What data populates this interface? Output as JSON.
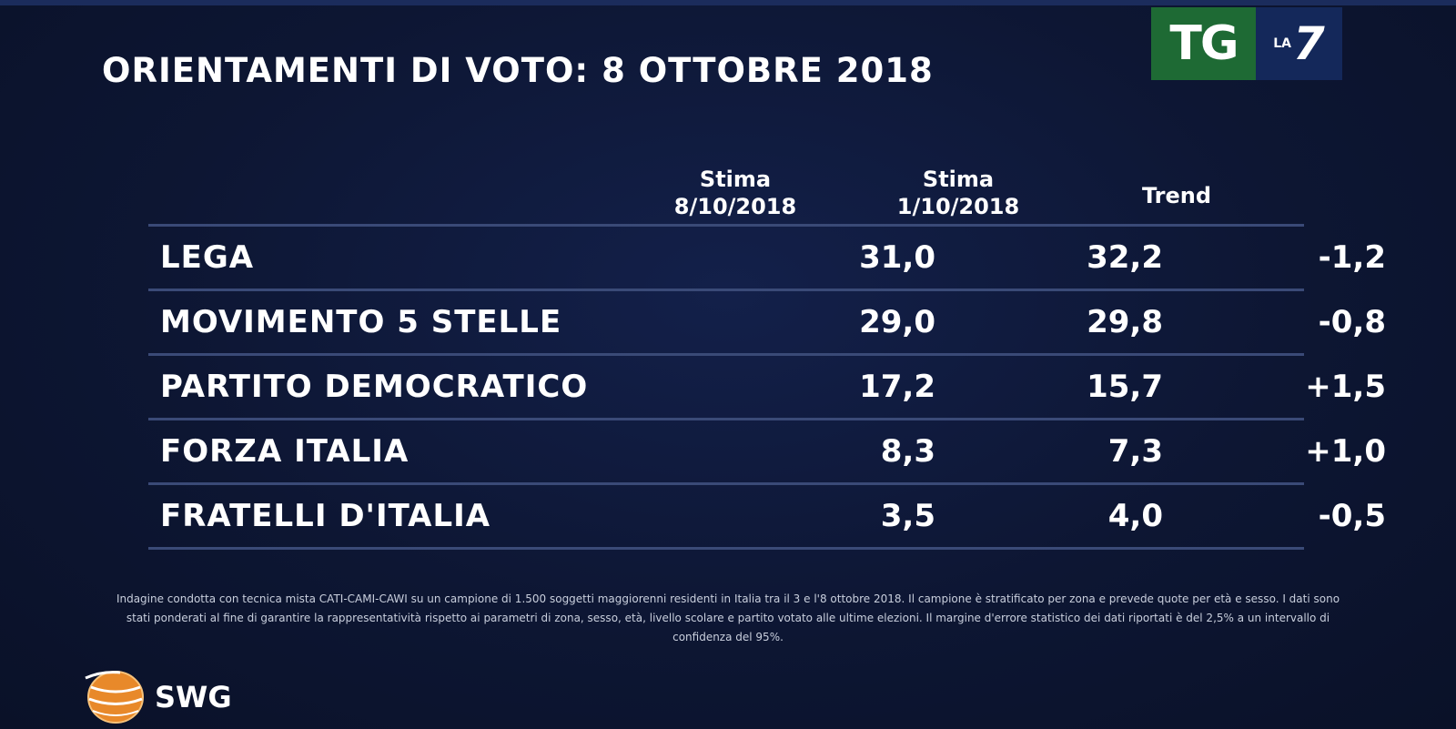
{
  "title": "ORIENTAMENTI DI VOTO: 8 OTTOBRE 2018",
  "logo": {
    "tg": "TG",
    "la": "LA",
    "seven": "7",
    "colors": {
      "tg_bg": "#1e6a34",
      "la7_bg": "#14285a"
    }
  },
  "chart_data": {
    "type": "table",
    "columns": [
      "",
      "Stima 8/10/2018",
      "Stima 1/10/2018",
      "Trend"
    ],
    "header": {
      "col1_line1": "Stima",
      "col1_line2": "8/10/2018",
      "col2_line1": "Stima",
      "col2_line2": "1/10/2018",
      "col3": "Trend"
    },
    "rows": [
      {
        "party": "LEGA",
        "stima_8_10": "31,0",
        "stima_1_10": "32,2",
        "trend": "-1,2"
      },
      {
        "party": "MOVIMENTO 5 STELLE",
        "stima_8_10": "29,0",
        "stima_1_10": "29,8",
        "trend": "-0,8"
      },
      {
        "party": "PARTITO DEMOCRATICO",
        "stima_8_10": "17,2",
        "stima_1_10": "15,7",
        "trend": "+1,5"
      },
      {
        "party": "FORZA ITALIA",
        "stima_8_10": "8,3",
        "stima_1_10": "7,3",
        "trend": "+1,0"
      },
      {
        "party": "FRATELLI D'ITALIA",
        "stima_8_10": "3,5",
        "stima_1_10": "4,0",
        "trend": "-0,5"
      }
    ]
  },
  "footnote": "Indagine condotta con tecnica mista CATI-CAMI-CAWI su un campione di 1.500 soggetti maggiorenni residenti in Italia tra il 3 e l'8 ottobre 2018. Il campione è stratificato per zona e prevede quote per età e sesso. I dati sono stati ponderati al fine di garantire la rappresentatività rispetto ai parametri di zona, sesso, età, livello scolare e partito votato alle ultime elezioni. Il margine d'errore statistico dei dati riportati è del 2,5% a un intervallo di confidenza del 95%.",
  "brand": {
    "name": "SWG",
    "icon": "swg-globe-icon",
    "colors": {
      "globe": "#e8892a"
    }
  },
  "colors": {
    "background": "#0d1530",
    "row_rule": "#3a4a77",
    "text": "#ffffff"
  }
}
